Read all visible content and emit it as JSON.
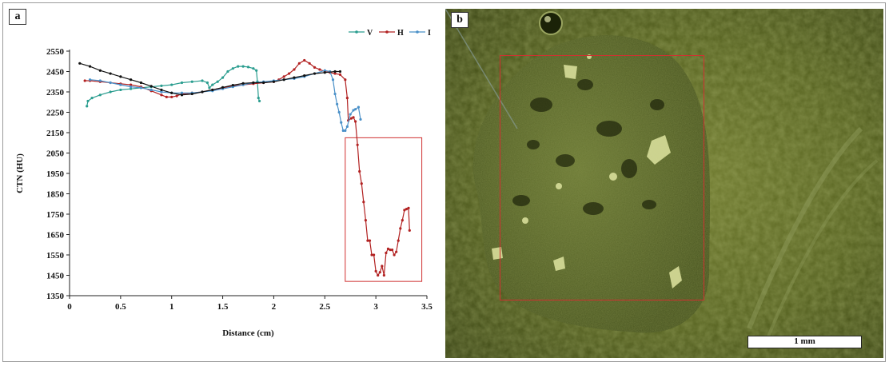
{
  "panels": {
    "a_label": "a",
    "b_label": "b",
    "scale_label": "1 mm"
  },
  "chart_data": {
    "type": "line",
    "title": "",
    "xlabel": "Distance (cm)",
    "ylabel": "CTN (HU)",
    "xlim": [
      0,
      3.5
    ],
    "ylim": [
      1350,
      2550
    ],
    "xticks": [
      0,
      0.5,
      1,
      1.5,
      2,
      2.5,
      3,
      3.5
    ],
    "xtick_labels": [
      "0",
      "0.5",
      "1",
      "1.5",
      "2",
      "2.5",
      "3",
      "3.5"
    ],
    "yticks": [
      1350,
      1450,
      1550,
      1650,
      1750,
      1850,
      1950,
      2050,
      2150,
      2250,
      2350,
      2450,
      2550
    ],
    "ytick_labels": [
      "1350",
      "1450",
      "1550",
      "1650",
      "1750",
      "1850",
      "1950",
      "2050",
      "2150",
      "2250",
      "2350",
      "2450",
      "2550"
    ],
    "grid": false,
    "legend_position": "top-right",
    "highlight_box": {
      "x": [
        2.7,
        3.45
      ],
      "y": [
        1420,
        2125
      ]
    },
    "series": [
      {
        "name": "V",
        "color": "#2a9d8f",
        "points": [
          [
            0.17,
            2280
          ],
          [
            0.18,
            2305
          ],
          [
            0.22,
            2320
          ],
          [
            0.3,
            2335
          ],
          [
            0.4,
            2350
          ],
          [
            0.5,
            2360
          ],
          [
            0.6,
            2365
          ],
          [
            0.7,
            2370
          ],
          [
            0.8,
            2375
          ],
          [
            0.9,
            2380
          ],
          [
            1.0,
            2385
          ],
          [
            1.1,
            2395
          ],
          [
            1.2,
            2400
          ],
          [
            1.3,
            2405
          ],
          [
            1.35,
            2395
          ],
          [
            1.37,
            2370
          ],
          [
            1.4,
            2385
          ],
          [
            1.45,
            2400
          ],
          [
            1.5,
            2420
          ],
          [
            1.55,
            2450
          ],
          [
            1.6,
            2465
          ],
          [
            1.65,
            2475
          ],
          [
            1.7,
            2475
          ],
          [
            1.75,
            2472
          ],
          [
            1.8,
            2465
          ],
          [
            1.83,
            2455
          ],
          [
            1.84,
            2400
          ],
          [
            1.85,
            2320
          ],
          [
            1.86,
            2305
          ]
        ]
      },
      {
        "name": "H",
        "color": "#b22222",
        "points": [
          [
            0.15,
            2405
          ],
          [
            0.2,
            2405
          ],
          [
            0.3,
            2400
          ],
          [
            0.4,
            2395
          ],
          [
            0.5,
            2390
          ],
          [
            0.6,
            2385
          ],
          [
            0.7,
            2375
          ],
          [
            0.8,
            2355
          ],
          [
            0.9,
            2335
          ],
          [
            0.95,
            2325
          ],
          [
            1.0,
            2325
          ],
          [
            1.05,
            2330
          ],
          [
            1.1,
            2340
          ],
          [
            1.2,
            2345
          ],
          [
            1.3,
            2350
          ],
          [
            1.4,
            2360
          ],
          [
            1.5,
            2370
          ],
          [
            1.6,
            2380
          ],
          [
            1.7,
            2385
          ],
          [
            1.8,
            2390
          ],
          [
            1.9,
            2395
          ],
          [
            2.0,
            2400
          ],
          [
            2.05,
            2410
          ],
          [
            2.1,
            2425
          ],
          [
            2.15,
            2440
          ],
          [
            2.2,
            2460
          ],
          [
            2.25,
            2490
          ],
          [
            2.3,
            2505
          ],
          [
            2.35,
            2490
          ],
          [
            2.4,
            2470
          ],
          [
            2.45,
            2460
          ],
          [
            2.5,
            2450
          ],
          [
            2.55,
            2445
          ],
          [
            2.6,
            2440
          ],
          [
            2.65,
            2435
          ],
          [
            2.7,
            2410
          ],
          [
            2.72,
            2320
          ],
          [
            2.73,
            2210
          ],
          [
            2.76,
            2220
          ],
          [
            2.78,
            2225
          ],
          [
            2.8,
            2205
          ],
          [
            2.82,
            2090
          ],
          [
            2.84,
            1960
          ],
          [
            2.86,
            1900
          ],
          [
            2.88,
            1810
          ],
          [
            2.9,
            1720
          ],
          [
            2.92,
            1620
          ],
          [
            2.94,
            1620
          ],
          [
            2.96,
            1550
          ],
          [
            2.98,
            1550
          ],
          [
            3.0,
            1470
          ],
          [
            3.02,
            1450
          ],
          [
            3.04,
            1465
          ],
          [
            3.06,
            1495
          ],
          [
            3.08,
            1450
          ],
          [
            3.1,
            1560
          ],
          [
            3.12,
            1580
          ],
          [
            3.14,
            1575
          ],
          [
            3.16,
            1575
          ],
          [
            3.18,
            1550
          ],
          [
            3.2,
            1565
          ],
          [
            3.22,
            1620
          ],
          [
            3.24,
            1680
          ],
          [
            3.26,
            1720
          ],
          [
            3.28,
            1770
          ],
          [
            3.3,
            1775
          ],
          [
            3.32,
            1780
          ],
          [
            3.33,
            1670
          ]
        ]
      },
      {
        "name": "I",
        "color": "#4a90c8",
        "points": [
          [
            0.2,
            2410
          ],
          [
            0.3,
            2405
          ],
          [
            0.4,
            2395
          ],
          [
            0.5,
            2385
          ],
          [
            0.6,
            2375
          ],
          [
            0.7,
            2370
          ],
          [
            0.8,
            2360
          ],
          [
            0.9,
            2350
          ],
          [
            1.0,
            2345
          ],
          [
            1.1,
            2345
          ],
          [
            1.2,
            2345
          ],
          [
            1.3,
            2350
          ],
          [
            1.4,
            2355
          ],
          [
            1.5,
            2365
          ],
          [
            1.6,
            2375
          ],
          [
            1.7,
            2385
          ],
          [
            1.8,
            2395
          ],
          [
            1.9,
            2400
          ],
          [
            2.0,
            2405
          ],
          [
            2.1,
            2410
          ],
          [
            2.2,
            2415
          ],
          [
            2.3,
            2425
          ],
          [
            2.4,
            2440
          ],
          [
            2.5,
            2455
          ],
          [
            2.55,
            2450
          ],
          [
            2.58,
            2410
          ],
          [
            2.6,
            2340
          ],
          [
            2.62,
            2290
          ],
          [
            2.64,
            2250
          ],
          [
            2.66,
            2200
          ],
          [
            2.68,
            2160
          ],
          [
            2.7,
            2160
          ],
          [
            2.72,
            2180
          ],
          [
            2.75,
            2240
          ],
          [
            2.78,
            2260
          ],
          [
            2.8,
            2265
          ],
          [
            2.83,
            2275
          ],
          [
            2.85,
            2215
          ]
        ]
      },
      {
        "name": "",
        "color": "#111111",
        "points": [
          [
            0.1,
            2490
          ],
          [
            0.2,
            2475
          ],
          [
            0.3,
            2455
          ],
          [
            0.4,
            2440
          ],
          [
            0.5,
            2425
          ],
          [
            0.6,
            2410
          ],
          [
            0.7,
            2395
          ],
          [
            0.8,
            2378
          ],
          [
            0.9,
            2360
          ],
          [
            1.0,
            2345
          ],
          [
            1.1,
            2335
          ],
          [
            1.2,
            2340
          ],
          [
            1.3,
            2350
          ],
          [
            1.4,
            2360
          ],
          [
            1.5,
            2372
          ],
          [
            1.6,
            2383
          ],
          [
            1.7,
            2392
          ],
          [
            1.8,
            2395
          ],
          [
            1.9,
            2395
          ],
          [
            2.0,
            2400
          ],
          [
            2.1,
            2410
          ],
          [
            2.2,
            2420
          ],
          [
            2.3,
            2430
          ],
          [
            2.4,
            2440
          ],
          [
            2.5,
            2445
          ],
          [
            2.6,
            2450
          ],
          [
            2.65,
            2450
          ]
        ]
      }
    ]
  },
  "colors": {
    "highlight": "#d03030",
    "axis": "#222222",
    "micrograph_base": "#4d5a1e"
  }
}
